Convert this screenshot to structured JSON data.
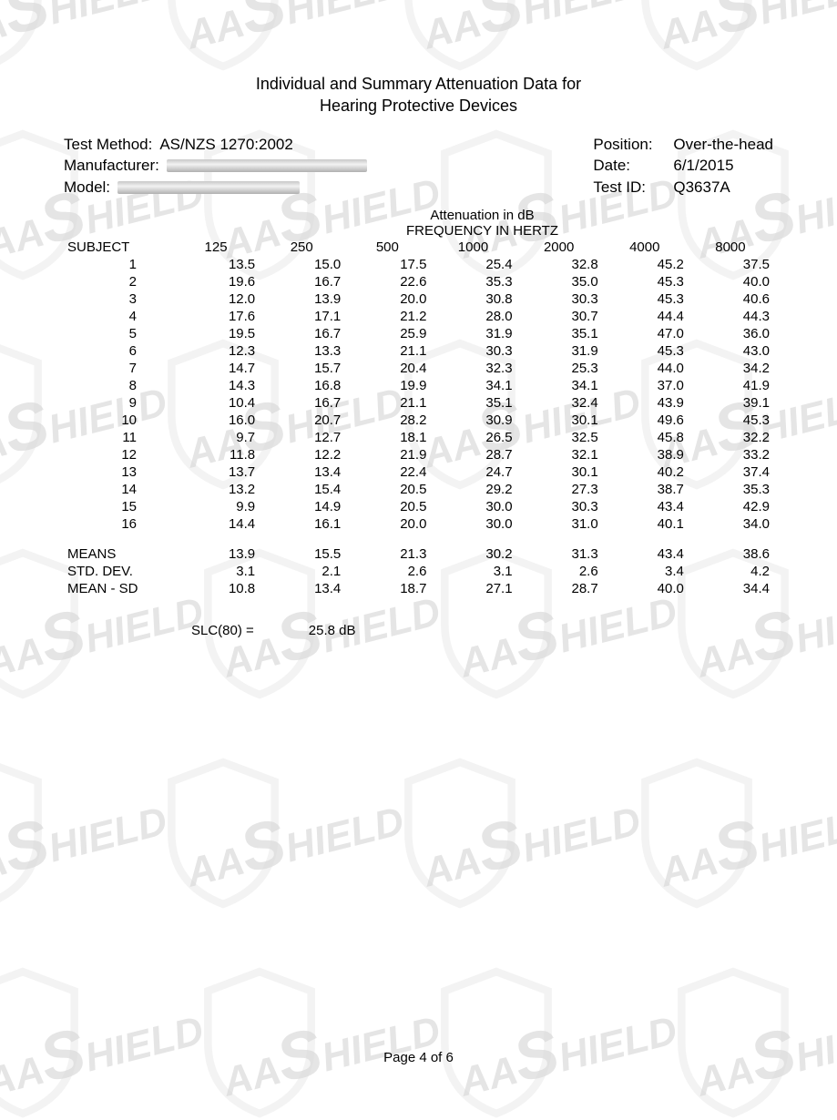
{
  "watermark_text": "AASHIELD",
  "title_line1": "Individual and Summary Attenuation Data for",
  "title_line2": "Hearing Protective Devices",
  "meta": {
    "test_method_label": "Test Method:",
    "test_method_value": "AS/NZS 1270:2002",
    "manufacturer_label": "Manufacturer:",
    "model_label": "Model:",
    "position_label": "Position:",
    "position_value": "Over-the-head",
    "date_label": "Date:",
    "date_value": "6/1/2015",
    "test_id_label": "Test ID:",
    "test_id_value": "Q3637A"
  },
  "table": {
    "header_line1": "Attenuation in dB",
    "header_line2": "FREQUENCY IN HERTZ",
    "subject_label": "SUBJECT",
    "frequencies": [
      "125",
      "250",
      "500",
      "1000",
      "2000",
      "4000",
      "8000"
    ],
    "rows": [
      {
        "s": "1",
        "v": [
          "13.5",
          "15.0",
          "17.5",
          "25.4",
          "32.8",
          "45.2",
          "37.5"
        ]
      },
      {
        "s": "2",
        "v": [
          "19.6",
          "16.7",
          "22.6",
          "35.3",
          "35.0",
          "45.3",
          "40.0"
        ]
      },
      {
        "s": "3",
        "v": [
          "12.0",
          "13.9",
          "20.0",
          "30.8",
          "30.3",
          "45.3",
          "40.6"
        ]
      },
      {
        "s": "4",
        "v": [
          "17.6",
          "17.1",
          "21.2",
          "28.0",
          "30.7",
          "44.4",
          "44.3"
        ]
      },
      {
        "s": "5",
        "v": [
          "19.5",
          "16.7",
          "25.9",
          "31.9",
          "35.1",
          "47.0",
          "36.0"
        ]
      },
      {
        "s": "6",
        "v": [
          "12.3",
          "13.3",
          "21.1",
          "30.3",
          "31.9",
          "45.3",
          "43.0"
        ]
      },
      {
        "s": "7",
        "v": [
          "14.7",
          "15.7",
          "20.4",
          "32.3",
          "25.3",
          "44.0",
          "34.2"
        ]
      },
      {
        "s": "8",
        "v": [
          "14.3",
          "16.8",
          "19.9",
          "34.1",
          "34.1",
          "37.0",
          "41.9"
        ]
      },
      {
        "s": "9",
        "v": [
          "10.4",
          "16.7",
          "21.1",
          "35.1",
          "32.4",
          "43.9",
          "39.1"
        ]
      },
      {
        "s": "10",
        "v": [
          "16.0",
          "20.7",
          "28.2",
          "30.9",
          "30.1",
          "49.6",
          "45.3"
        ]
      },
      {
        "s": "11",
        "v": [
          "9.7",
          "12.7",
          "18.1",
          "26.5",
          "32.5",
          "45.8",
          "32.2"
        ]
      },
      {
        "s": "12",
        "v": [
          "11.8",
          "12.2",
          "21.9",
          "28.7",
          "32.1",
          "38.9",
          "33.2"
        ]
      },
      {
        "s": "13",
        "v": [
          "13.7",
          "13.4",
          "22.4",
          "24.7",
          "30.1",
          "40.2",
          "37.4"
        ]
      },
      {
        "s": "14",
        "v": [
          "13.2",
          "15.4",
          "20.5",
          "29.2",
          "27.3",
          "38.7",
          "35.3"
        ]
      },
      {
        "s": "15",
        "v": [
          "9.9",
          "14.9",
          "20.5",
          "30.0",
          "30.3",
          "43.4",
          "42.9"
        ]
      },
      {
        "s": "16",
        "v": [
          "14.4",
          "16.1",
          "20.0",
          "30.0",
          "31.0",
          "40.1",
          "34.0"
        ]
      }
    ],
    "summary": [
      {
        "label": "MEANS",
        "v": [
          "13.9",
          "15.5",
          "21.3",
          "30.2",
          "31.3",
          "43.4",
          "38.6"
        ]
      },
      {
        "label": "STD. DEV.",
        "v": [
          "3.1",
          "2.1",
          "2.6",
          "3.1",
          "2.6",
          "3.4",
          "4.2"
        ]
      },
      {
        "label": "MEAN - SD",
        "v": [
          "10.8",
          "13.4",
          "18.7",
          "27.1",
          "28.7",
          "40.0",
          "34.4"
        ]
      }
    ]
  },
  "slc": {
    "label": "SLC(80) =",
    "value": "25.8 dB"
  },
  "page": "Page 4 of 6"
}
